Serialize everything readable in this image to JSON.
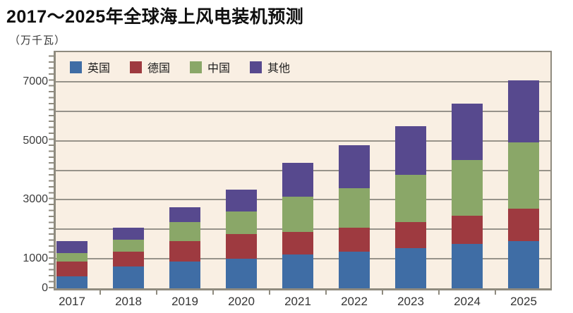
{
  "header": {
    "title": "2017～2025年全球海上风电装机预测",
    "unit_label": "（万千瓦）"
  },
  "colors": {
    "uk_blue": "#3f6da5",
    "germany_red": "#9e3a40",
    "china_green": "#8aa768",
    "other_purple": "#57498e",
    "plot_background": "#f9efe3",
    "gridline": "#97938a",
    "axis": "#8f8b7f",
    "title_text": "#0f0f0f",
    "tick_text": "#3c3c3c"
  },
  "chart_data": {
    "type": "bar",
    "stacked": true,
    "title": "2017～2025年全球海上风电装机预测",
    "ylabel": "万千瓦",
    "xlabel": "",
    "ylim": [
      0,
      8000
    ],
    "grid": "horizontal, every 1000",
    "legend_position": "top-inside",
    "categories": [
      "2017",
      "2018",
      "2019",
      "2020",
      "2021",
      "2022",
      "2023",
      "2024",
      "2025"
    ],
    "series": [
      {
        "name": "英国",
        "color": "#3f6da5",
        "values": [
          400,
          750,
          900,
          1000,
          1150,
          1250,
          1350,
          1500,
          1600
        ]
      },
      {
        "name": "德国",
        "color": "#9e3a40",
        "values": [
          500,
          500,
          700,
          850,
          750,
          800,
          900,
          950,
          1100
        ]
      },
      {
        "name": "中国",
        "color": "#8aa768",
        "values": [
          300,
          400,
          650,
          750,
          1200,
          1350,
          1600,
          1900,
          2250
        ]
      },
      {
        "name": "其他",
        "color": "#57498e",
        "values": [
          400,
          400,
          500,
          750,
          1150,
          1450,
          1650,
          1900,
          2100
        ]
      }
    ],
    "totals": [
      1600,
      2050,
      2750,
      3350,
      4250,
      4850,
      5500,
      6250,
      7050
    ],
    "y_tick_labels": [
      {
        "value": 0,
        "label": "0"
      },
      {
        "value": 1000,
        "label": "1000"
      },
      {
        "value": 3000,
        "label": "3000"
      },
      {
        "value": 5000,
        "label": "5000"
      },
      {
        "value": 7000,
        "label": "7000"
      }
    ]
  }
}
